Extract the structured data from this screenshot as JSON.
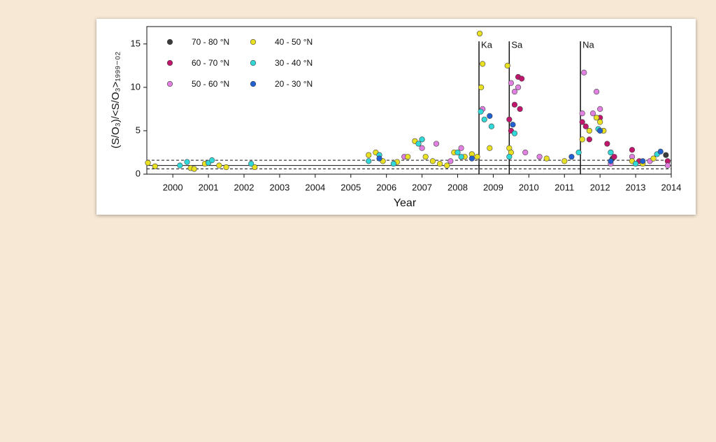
{
  "chart_data": {
    "type": "scatter",
    "x_label": "Year",
    "y_label": "(S/O₃)/<S/O₃>₁₉₉₉₋₀₂",
    "xlim": [
      1999.27,
      2014
    ],
    "ylim": [
      0,
      17
    ],
    "xticks": [
      2000,
      2001,
      2002,
      2003,
      2004,
      2005,
      2006,
      2007,
      2008,
      2009,
      2010,
      2011,
      2012,
      2013,
      2014
    ],
    "yticks": [
      0,
      5,
      10,
      15
    ],
    "legend": "upper left",
    "reference_lines": [
      {
        "value": 1,
        "style": "solid"
      },
      {
        "value": 0.6,
        "style": "dashed"
      },
      {
        "value": 1.6,
        "style": "dashed"
      }
    ],
    "annotations": [
      {
        "x": 2008.6,
        "text": "Ka"
      },
      {
        "x": 2009.45,
        "text": "Sa"
      },
      {
        "x": 2011.45,
        "text": "Na"
      }
    ],
    "series": [
      {
        "name": "70 - 80 °N",
        "color": "#3a3a3a",
        "x": [
          2012.35,
          2013.85
        ],
        "values": [
          1.8,
          2.2
        ]
      },
      {
        "name": "60 - 70 °N",
        "color": "#c0166e",
        "x": [
          2009.45,
          2009.5,
          2009.6,
          2009.7,
          2009.75,
          2009.8,
          2011.5,
          2011.6,
          2011.7,
          2012.0,
          2012.2,
          2012.4,
          2012.9,
          2013.1,
          2013.9
        ],
        "values": [
          6.3,
          5.0,
          8.0,
          11.2,
          7.5,
          11.0,
          6.0,
          5.5,
          4.0,
          6.5,
          3.5,
          2.0,
          2.8,
          1.5,
          1.5
        ]
      },
      {
        "name": "50 - 60 °N",
        "color": "#e080e0",
        "x": [
          2006.5,
          2007.0,
          2007.4,
          2007.8,
          2008.1,
          2008.7,
          2009.5,
          2009.6,
          2009.7,
          2009.9,
          2010.3,
          2011.5,
          2011.55,
          2011.8,
          2011.9,
          2012.0,
          2012.3,
          2012.9,
          2013.4,
          2013.9
        ],
        "values": [
          2.0,
          3.0,
          3.5,
          1.5,
          3.0,
          7.5,
          10.5,
          9.5,
          10.0,
          2.5,
          2.0,
          7.0,
          11.7,
          7.0,
          9.5,
          7.5,
          1.2,
          2.0,
          1.5,
          1.0
        ]
      },
      {
        "name": "40 - 50 °N",
        "color": "#e8e020",
        "x": [
          1999.3,
          1999.5,
          2000.5,
          2000.6,
          2000.9,
          2001.3,
          2001.5,
          2002.3,
          2005.5,
          2005.7,
          2005.9,
          2006.3,
          2006.6,
          2006.8,
          2007.1,
          2007.3,
          2007.5,
          2007.7,
          2007.9,
          2008.2,
          2008.4,
          2008.55,
          2008.62,
          2008.66,
          2008.7,
          2008.9,
          2009.4,
          2009.45,
          2009.5,
          2010.5,
          2011.0,
          2011.5,
          2011.7,
          2011.9,
          2012.0,
          2012.1,
          2012.3,
          2012.9,
          2013.2,
          2013.5
        ],
        "values": [
          1.3,
          0.9,
          0.7,
          0.6,
          1.2,
          1.0,
          0.8,
          0.8,
          2.2,
          2.5,
          1.5,
          1.4,
          2.0,
          3.8,
          2.0,
          1.5,
          1.2,
          1.0,
          2.5,
          2.0,
          2.3,
          2.0,
          16.2,
          10.0,
          12.7,
          3.0,
          12.5,
          3.0,
          2.5,
          1.8,
          1.5,
          4.0,
          5.0,
          6.5,
          6.0,
          5.0,
          2.5,
          1.5,
          1.2,
          1.8
        ]
      },
      {
        "name": "30 - 40 °N",
        "color": "#30d8d8",
        "x": [
          2000.2,
          2000.4,
          2001.0,
          2001.1,
          2002.2,
          2005.5,
          2005.8,
          2006.2,
          2006.9,
          2007.0,
          2008.0,
          2008.1,
          2008.65,
          2008.75,
          2008.95,
          2009.45,
          2009.6,
          2011.4,
          2011.95,
          2012.3,
          2013.0,
          2013.6
        ],
        "values": [
          1.0,
          1.4,
          1.3,
          1.6,
          1.2,
          1.5,
          2.2,
          1.2,
          3.5,
          4.0,
          2.5,
          2.0,
          7.2,
          6.3,
          5.5,
          2.0,
          4.7,
          2.5,
          5.2,
          2.5,
          1.2,
          2.3
        ]
      },
      {
        "name": "20 - 30 °N",
        "color": "#2060d0",
        "x": [
          2005.8,
          2008.4,
          2008.9,
          2009.55,
          2011.2,
          2012.0,
          2012.3,
          2013.2,
          2013.7
        ],
        "values": [
          1.8,
          1.8,
          6.7,
          5.7,
          2.0,
          5.0,
          1.5,
          1.5,
          2.6
        ]
      }
    ]
  }
}
